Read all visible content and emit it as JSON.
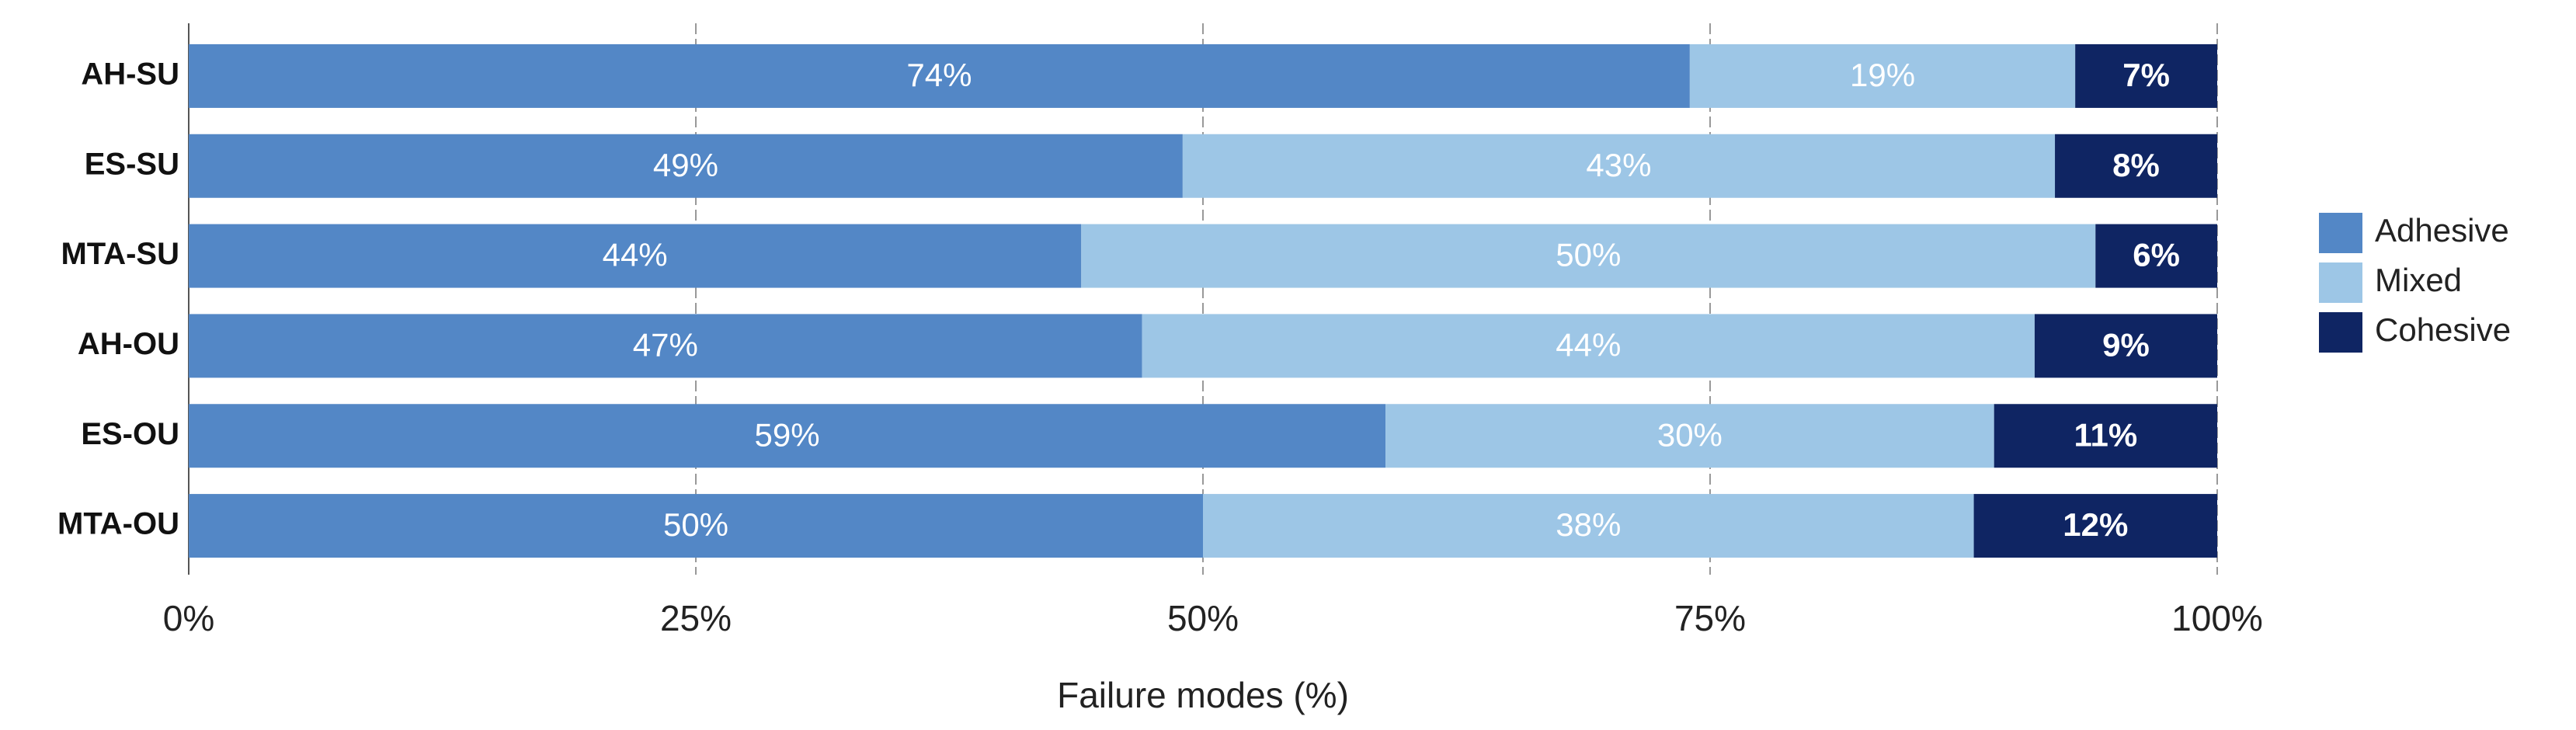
{
  "chart_data": {
    "type": "stacked-barh",
    "xlabel": "Failure modes (%)",
    "categories": [
      "AH-SU",
      "ES-SU",
      "MTA-SU",
      "AH-OU",
      "ES-OU",
      "MTA-OU"
    ],
    "series": [
      {
        "name": "Adhesive",
        "color": "#5387c6",
        "values": [
          74,
          49,
          44,
          47,
          59,
          50
        ],
        "value_labels": [
          "74%",
          "49%",
          "44%",
          "47%",
          "59%",
          "50%"
        ]
      },
      {
        "name": "Mixed",
        "color": "#9dc6e6",
        "values": [
          19,
          43,
          50,
          44,
          30,
          38
        ],
        "value_labels": [
          "19%",
          "43%",
          "50%",
          "44%",
          "30%",
          "38%"
        ]
      },
      {
        "name": "Cohesive",
        "color": "#0f2563",
        "values": [
          7,
          8,
          6,
          9,
          11,
          12
        ],
        "value_labels": [
          "7%",
          "8%",
          "6%",
          "9%",
          "11%",
          "12%"
        ]
      }
    ],
    "xlim": [
      0,
      100
    ],
    "xticks": [
      {
        "value": 0,
        "label": "0%"
      },
      {
        "value": 25,
        "label": "25%"
      },
      {
        "value": 50,
        "label": "50%"
      },
      {
        "value": 75,
        "label": "75%"
      },
      {
        "value": 100,
        "label": "100%"
      }
    ],
    "grid": true,
    "legend": "right"
  }
}
